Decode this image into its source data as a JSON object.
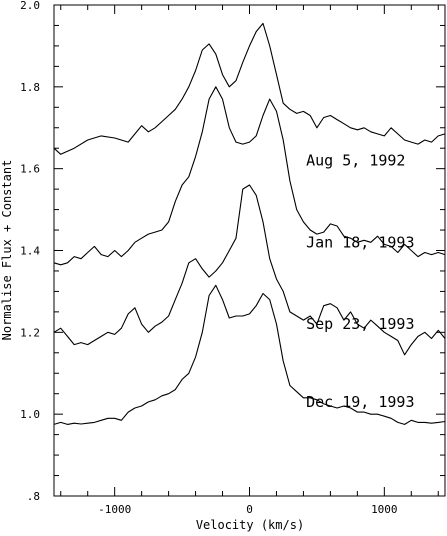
{
  "chart_data": {
    "type": "line",
    "xlabel": "Velocity (km/s)",
    "ylabel": "Normalise Flux + Constant",
    "xlim": [
      -1450,
      1450
    ],
    "ylim": [
      0.8,
      2.0
    ],
    "x_major_ticks": [
      -1000,
      0,
      1000
    ],
    "x_tick_labels": [
      "-1000",
      "0",
      "1000"
    ],
    "y_major_ticks": [
      0.8,
      1.0,
      1.2,
      1.4,
      1.6,
      1.8,
      2.0
    ],
    "y_tick_labels": [
      ".8",
      "1.0",
      "1.2",
      "1.4",
      "1.6",
      "1.8",
      "2.0"
    ],
    "grid": false,
    "legend": "labels placed beside each curve on the right",
    "series": [
      {
        "name": "Aug 5, 1992",
        "label_at": [
          420,
          1.62
        ],
        "x": [
          -1450,
          -1400,
          -1300,
          -1200,
          -1100,
          -1000,
          -900,
          -800,
          -750,
          -700,
          -650,
          -600,
          -550,
          -500,
          -450,
          -400,
          -350,
          -300,
          -250,
          -200,
          -150,
          -100,
          -50,
          0,
          50,
          100,
          150,
          200,
          250,
          300,
          350,
          400,
          450,
          500,
          550,
          600,
          650,
          700,
          750,
          800,
          850,
          900,
          950,
          1000,
          1050,
          1100,
          1150,
          1200,
          1250,
          1300,
          1350,
          1400,
          1450
        ],
        "y": [
          1.65,
          1.635,
          1.65,
          1.67,
          1.68,
          1.675,
          1.665,
          1.705,
          1.69,
          1.7,
          1.715,
          1.73,
          1.745,
          1.77,
          1.8,
          1.84,
          1.89,
          1.905,
          1.88,
          1.83,
          1.8,
          1.815,
          1.86,
          1.9,
          1.935,
          1.955,
          1.9,
          1.83,
          1.76,
          1.745,
          1.735,
          1.74,
          1.73,
          1.7,
          1.725,
          1.73,
          1.72,
          1.71,
          1.7,
          1.695,
          1.7,
          1.69,
          1.685,
          1.68,
          1.7,
          1.685,
          1.67,
          1.665,
          1.66,
          1.67,
          1.665,
          1.68,
          1.685
        ]
      },
      {
        "name": "Jan 18, 1993",
        "label_at": [
          420,
          1.42
        ],
        "x": [
          -1450,
          -1400,
          -1350,
          -1300,
          -1250,
          -1200,
          -1150,
          -1100,
          -1050,
          -1000,
          -950,
          -900,
          -850,
          -800,
          -750,
          -700,
          -650,
          -600,
          -550,
          -500,
          -450,
          -400,
          -350,
          -300,
          -250,
          -200,
          -150,
          -100,
          -50,
          0,
          50,
          100,
          150,
          200,
          250,
          300,
          350,
          400,
          450,
          500,
          550,
          600,
          650,
          700,
          750,
          800,
          850,
          900,
          950,
          1000,
          1050,
          1100,
          1150,
          1200,
          1250,
          1300,
          1350,
          1400,
          1450
        ],
        "y": [
          1.37,
          1.365,
          1.37,
          1.385,
          1.38,
          1.395,
          1.41,
          1.39,
          1.385,
          1.4,
          1.385,
          1.4,
          1.42,
          1.43,
          1.44,
          1.445,
          1.45,
          1.47,
          1.52,
          1.56,
          1.58,
          1.63,
          1.69,
          1.77,
          1.8,
          1.77,
          1.7,
          1.665,
          1.66,
          1.665,
          1.68,
          1.73,
          1.77,
          1.74,
          1.67,
          1.57,
          1.5,
          1.47,
          1.45,
          1.44,
          1.445,
          1.465,
          1.46,
          1.435,
          1.43,
          1.42,
          1.425,
          1.42,
          1.435,
          1.415,
          1.41,
          1.395,
          1.415,
          1.4,
          1.385,
          1.395,
          1.39,
          1.395,
          1.39
        ]
      },
      {
        "name": "Sep 23, 1993",
        "label_at": [
          420,
          1.22
        ],
        "x": [
          -1450,
          -1400,
          -1350,
          -1300,
          -1250,
          -1200,
          -1150,
          -1100,
          -1050,
          -1000,
          -950,
          -900,
          -850,
          -800,
          -750,
          -700,
          -650,
          -600,
          -550,
          -500,
          -450,
          -400,
          -350,
          -300,
          -250,
          -200,
          -150,
          -100,
          -50,
          0,
          50,
          100,
          150,
          200,
          250,
          300,
          350,
          400,
          450,
          500,
          550,
          600,
          650,
          700,
          750,
          800,
          850,
          900,
          950,
          1000,
          1050,
          1100,
          1150,
          1200,
          1250,
          1300,
          1350,
          1400,
          1450
        ],
        "y": [
          1.2,
          1.21,
          1.19,
          1.17,
          1.175,
          1.17,
          1.18,
          1.19,
          1.2,
          1.195,
          1.21,
          1.245,
          1.26,
          1.22,
          1.2,
          1.215,
          1.225,
          1.24,
          1.28,
          1.32,
          1.37,
          1.38,
          1.355,
          1.335,
          1.35,
          1.37,
          1.4,
          1.43,
          1.55,
          1.56,
          1.535,
          1.47,
          1.38,
          1.33,
          1.3,
          1.25,
          1.24,
          1.23,
          1.24,
          1.22,
          1.265,
          1.27,
          1.26,
          1.23,
          1.25,
          1.22,
          1.21,
          1.23,
          1.215,
          1.2,
          1.19,
          1.18,
          1.145,
          1.17,
          1.19,
          1.2,
          1.185,
          1.205,
          1.185
        ]
      },
      {
        "name": "Dec 19, 1993",
        "label_at": [
          420,
          1.03
        ],
        "x": [
          -1450,
          -1400,
          -1350,
          -1300,
          -1250,
          -1200,
          -1150,
          -1100,
          -1050,
          -1000,
          -950,
          -900,
          -850,
          -800,
          -750,
          -700,
          -650,
          -600,
          -550,
          -500,
          -450,
          -400,
          -350,
          -300,
          -250,
          -200,
          -150,
          -100,
          -50,
          0,
          50,
          100,
          150,
          200,
          250,
          300,
          350,
          400,
          450,
          500,
          550,
          600,
          650,
          700,
          750,
          800,
          850,
          900,
          950,
          1000,
          1050,
          1100,
          1150,
          1200,
          1250,
          1300,
          1350,
          1400,
          1450
        ],
        "y": [
          0.975,
          0.98,
          0.975,
          0.978,
          0.976,
          0.978,
          0.98,
          0.985,
          0.99,
          0.99,
          0.985,
          1.005,
          1.015,
          1.02,
          1.03,
          1.035,
          1.045,
          1.05,
          1.06,
          1.085,
          1.1,
          1.14,
          1.2,
          1.29,
          1.315,
          1.28,
          1.235,
          1.24,
          1.24,
          1.245,
          1.265,
          1.295,
          1.28,
          1.22,
          1.13,
          1.07,
          1.055,
          1.04,
          1.04,
          1.035,
          1.025,
          1.02,
          1.015,
          1.02,
          1.015,
          1.005,
          1.005,
          1.0,
          1.0,
          0.995,
          0.99,
          0.98,
          0.975,
          0.985,
          0.98,
          0.98,
          0.978,
          0.98,
          0.982
        ]
      }
    ]
  }
}
